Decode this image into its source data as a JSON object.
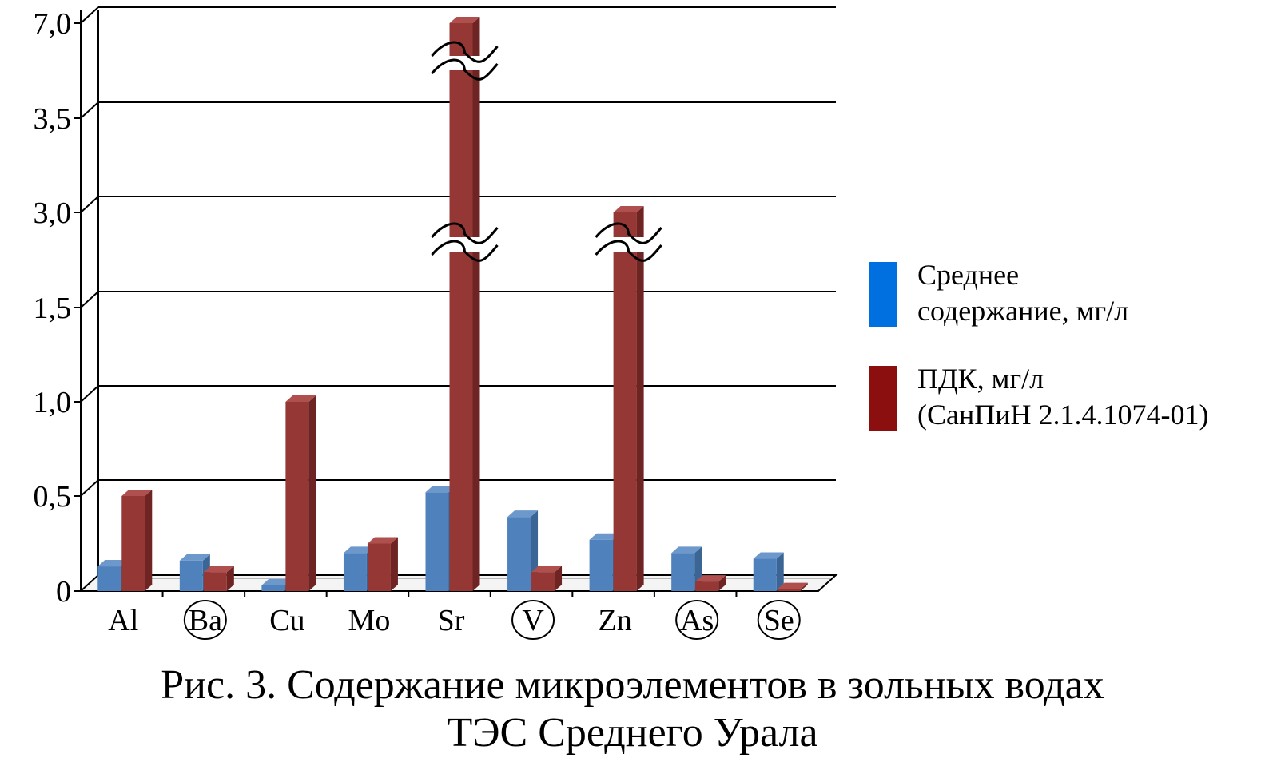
{
  "chart_data": {
    "type": "bar",
    "categories": [
      "Al",
      "Ba",
      "Cu",
      "Mo",
      "Sr",
      "V",
      "Zn",
      "As",
      "Se"
    ],
    "circled_categories": [
      "Ba",
      "V",
      "As",
      "Se"
    ],
    "series": [
      {
        "name": "Среднее содержание, мг/л",
        "values": [
          0.13,
          0.16,
          0.03,
          0.2,
          0.52,
          0.39,
          0.27,
          0.2,
          0.17
        ]
      },
      {
        "name": "ПДК, мг/л (СанПиН 2.1.4.1074-01)",
        "values": [
          0.5,
          0.1,
          1.0,
          0.25,
          7.0,
          0.1,
          3.0,
          0.05,
          0.01
        ]
      }
    ],
    "y_ticks": [
      "0",
      "0,5",
      "1,0",
      "1,5",
      "3,0",
      "3,5",
      "7,0"
    ],
    "y_tick_values": [
      0,
      0.5,
      1.0,
      1.5,
      3.0,
      3.5,
      7.0
    ],
    "y_axis_breaks": "broken (non-linear) axis, break marks on tall bars",
    "grid": true,
    "legend_position": "right",
    "colors": {
      "series1": "#4f81bd",
      "series1_legend": "#0070e0",
      "series2": "#953735",
      "series2_legend": "#8b0f0f"
    }
  },
  "legend": {
    "s1_line1": "Среднее",
    "s1_line2": "содержание, мг/л",
    "s2_line1": "ПДК, мг/л",
    "s2_line2": "(СанПиН 2.1.4.1074-01)"
  },
  "caption": {
    "line1": "Рис. 3. Содержание микроэлементов в зольных водах",
    "line2": "ТЭС Среднего Урала"
  }
}
